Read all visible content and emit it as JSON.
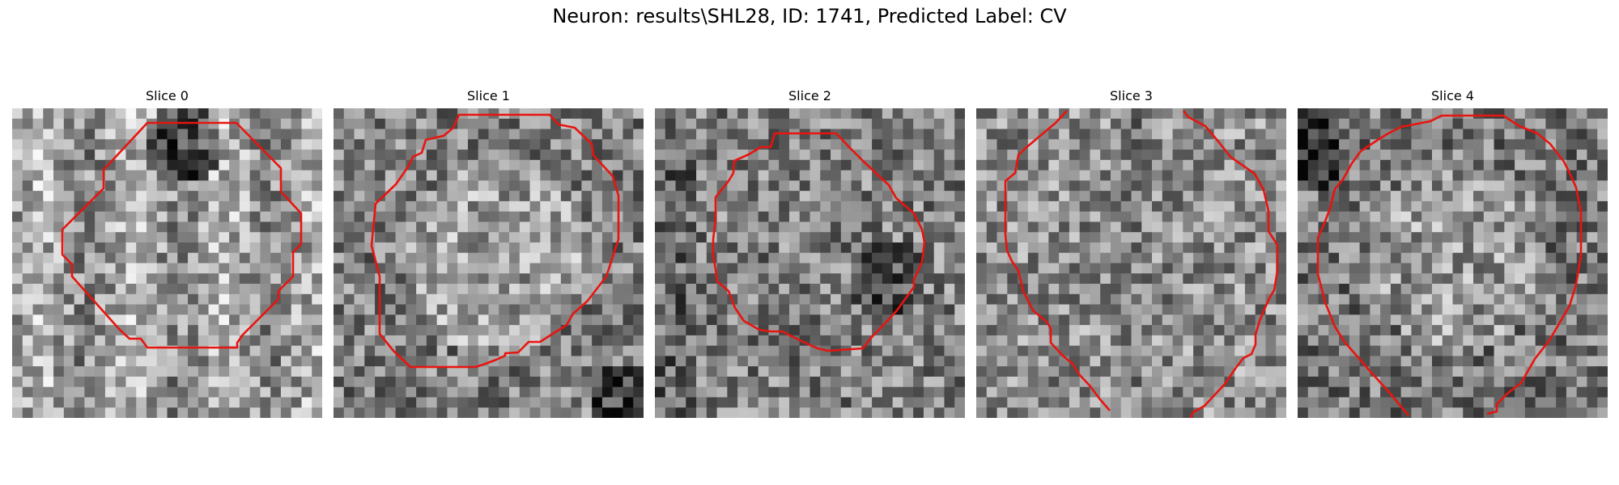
{
  "figure": {
    "title": "Neuron: results\\SHL28, ID: 1741, Predicted Label: CV"
  },
  "panels": [
    {
      "title": "Slice 0"
    },
    {
      "title": "Slice 1"
    },
    {
      "title": "Slice 2"
    },
    {
      "title": "Slice 3"
    },
    {
      "title": "Slice 4"
    }
  ],
  "colors": {
    "contour": "#e8140f",
    "background": "#ffffff"
  },
  "image_style": {
    "colormap": "gray",
    "grid_size": 30
  }
}
